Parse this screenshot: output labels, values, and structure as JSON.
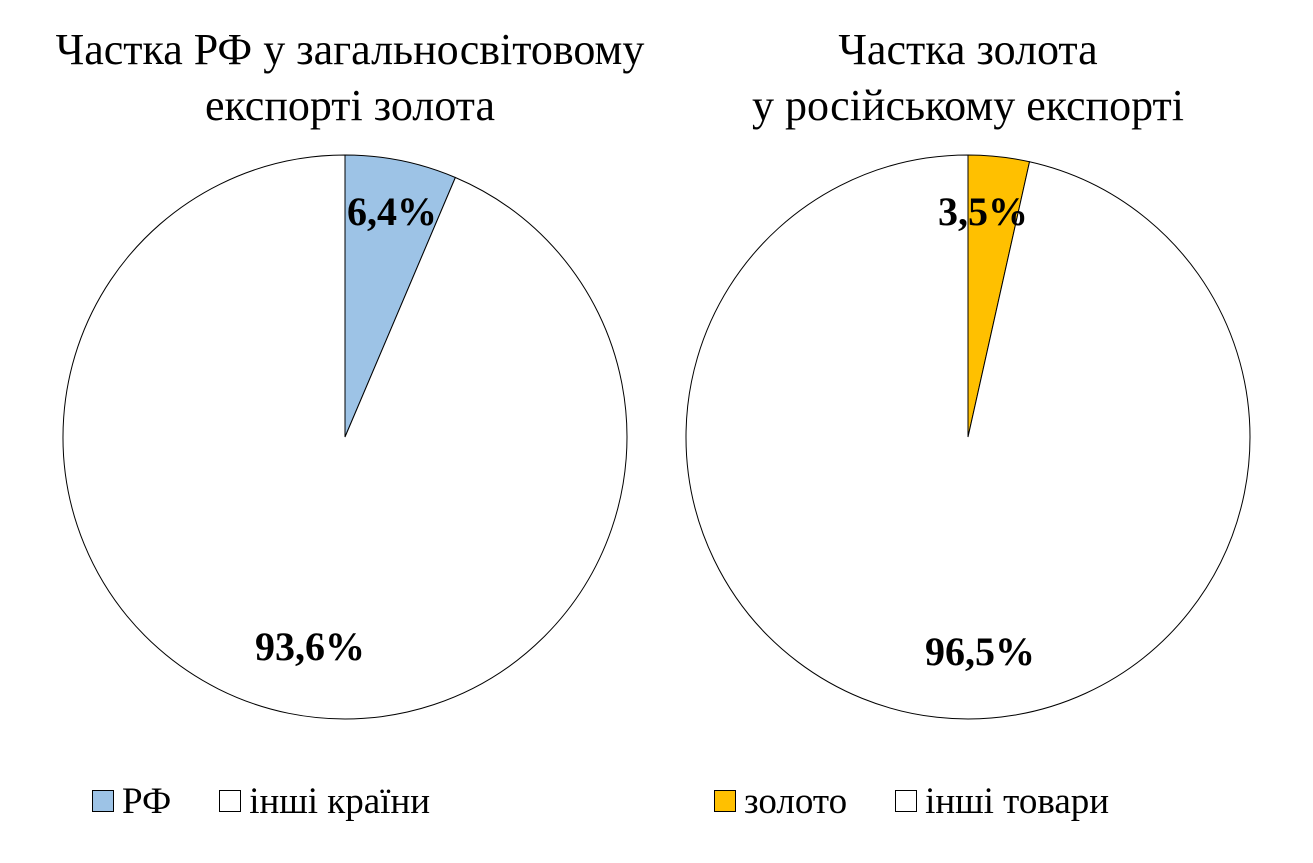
{
  "chart_data": [
    {
      "type": "pie",
      "title_lines": [
        "Частка РФ у загальносвітовому",
        "експорті золота"
      ],
      "slices": [
        {
          "label": "РФ",
          "value": 6.4,
          "display": "6,4%",
          "color": "#9dc3e6"
        },
        {
          "label": "інші країни",
          "value": 93.6,
          "display": "93,6%",
          "color": "#ffffff"
        }
      ],
      "legend_position": "bottom"
    },
    {
      "type": "pie",
      "title_lines": [
        "Частка золота",
        "у російському експорті"
      ],
      "slices": [
        {
          "label": "золото",
          "value": 3.5,
          "display": "3,5%",
          "color": "#ffc000"
        },
        {
          "label": "інші товари",
          "value": 96.5,
          "display": "96,5%",
          "color": "#ffffff"
        }
      ],
      "legend_position": "bottom"
    }
  ]
}
